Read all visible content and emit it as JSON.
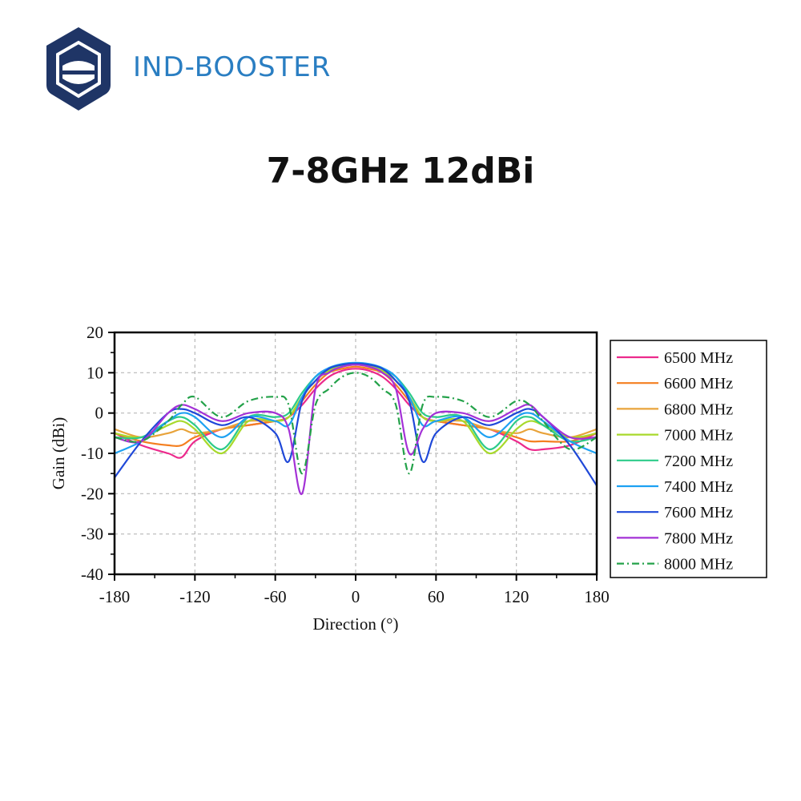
{
  "brand": {
    "name": "IND-BOOSTER",
    "color": "#2a7ec2",
    "logo_color": "#1f3566",
    "logo_icon": "hexagon-shield-logo"
  },
  "page": {
    "title": "7-8GHz 12dBi"
  },
  "chart_data": {
    "type": "line",
    "xlabel": "Direction (°)",
    "ylabel": "Gain (dBi)",
    "xlim": [
      -180,
      180
    ],
    "ylim": [
      -40,
      20
    ],
    "xticks": [
      -180,
      -120,
      -60,
      0,
      60,
      120,
      180
    ],
    "yticks": [
      20,
      10,
      0,
      -10,
      -20,
      -30,
      -40
    ],
    "grid": true,
    "legend_position": "right",
    "x": [
      -180,
      -160,
      -140,
      -130,
      -120,
      -100,
      -80,
      -60,
      -50,
      -40,
      -30,
      -20,
      -10,
      0,
      10,
      20,
      30,
      40,
      50,
      60,
      80,
      100,
      120,
      130,
      140,
      160,
      180
    ],
    "series": [
      {
        "name": "6500 MHz",
        "color": "#ec2a8c",
        "dash": "solid",
        "values": [
          -5,
          -8,
          -10,
          -11,
          -7,
          -4,
          -3,
          -2,
          -1,
          2,
          6,
          9,
          10.5,
          11,
          10.5,
          9,
          6,
          2,
          -1,
          -2,
          -3,
          -4,
          -7,
          -9,
          -9,
          -8,
          -5
        ]
      },
      {
        "name": "6600 MHz",
        "color": "#f47f20",
        "dash": "solid",
        "values": [
          -5,
          -7,
          -8,
          -8,
          -6,
          -4,
          -3,
          -2,
          -1,
          3,
          7,
          10,
          11,
          11.5,
          11,
          10,
          7,
          3,
          -1,
          -2,
          -3,
          -4,
          -6,
          -7,
          -7,
          -7,
          -5
        ]
      },
      {
        "name": "6800 MHz",
        "color": "#e8a33a",
        "dash": "solid",
        "values": [
          -4,
          -6,
          -5,
          -4,
          -5,
          -4,
          -2,
          -2,
          -1,
          4,
          8,
          10.5,
          11.5,
          12,
          11.5,
          10.5,
          8,
          4,
          -1,
          -2,
          -2,
          -4,
          -5,
          -4,
          -5,
          -6,
          -4
        ]
      },
      {
        "name": "7000 MHz",
        "color": "#a8d92c",
        "dash": "solid",
        "values": [
          -5,
          -6,
          -3,
          -2,
          -4,
          -10,
          -2,
          -2,
          -1,
          4,
          8,
          10.5,
          11.8,
          12.2,
          11.8,
          10.5,
          8,
          4,
          -1,
          -2,
          -2,
          -10,
          -4,
          -2,
          -3,
          -6,
          -5
        ]
      },
      {
        "name": "7200 MHz",
        "color": "#2ccb8a",
        "dash": "solid",
        "values": [
          -6,
          -6,
          -2,
          -1,
          -3,
          -9,
          -1,
          -1,
          0,
          5,
          9,
          11,
          12,
          12.3,
          12,
          11,
          9,
          5,
          0,
          -1,
          -1,
          -9,
          -2,
          -1,
          -3,
          -7,
          -6
        ]
      },
      {
        "name": "7400 MHz",
        "color": "#1da1f2",
        "dash": "solid",
        "values": [
          -10,
          -7,
          -2,
          0,
          -1,
          -6,
          -1,
          -2,
          -3,
          4,
          9,
          11.2,
          12.2,
          12.5,
          12.2,
          11.2,
          9,
          4,
          -3,
          -2,
          -1,
          -6,
          -1,
          0,
          -2,
          -7,
          -10
        ]
      },
      {
        "name": "7600 MHz",
        "color": "#1f48d8",
        "dash": "solid",
        "values": [
          -16,
          -7,
          0,
          1,
          0,
          -3,
          -1,
          -5,
          -12,
          3,
          8,
          11,
          12,
          12.3,
          12,
          11,
          8,
          3,
          -12,
          -5,
          -1,
          -3,
          0,
          1,
          -1,
          -8,
          -18
        ]
      },
      {
        "name": "7800 MHz",
        "color": "#a331d6",
        "dash": "solid",
        "values": [
          -6,
          -7,
          0,
          2,
          1,
          -2,
          0,
          0,
          -4,
          -20,
          6,
          10,
          11.5,
          12,
          11.5,
          10,
          6,
          -10,
          -4,
          0,
          0,
          -2,
          1,
          2,
          -1,
          -6,
          -6
        ]
      },
      {
        "name": "8000 MHz",
        "color": "#24a24a",
        "dash": "dashdot",
        "values": [
          -6,
          -7,
          -2,
          2,
          4,
          -1,
          3,
          4,
          2,
          -15,
          2,
          6,
          9,
          10,
          9,
          6,
          2,
          -15,
          2,
          4,
          3,
          -1,
          3,
          2,
          -2,
          -9,
          -6
        ]
      }
    ]
  }
}
